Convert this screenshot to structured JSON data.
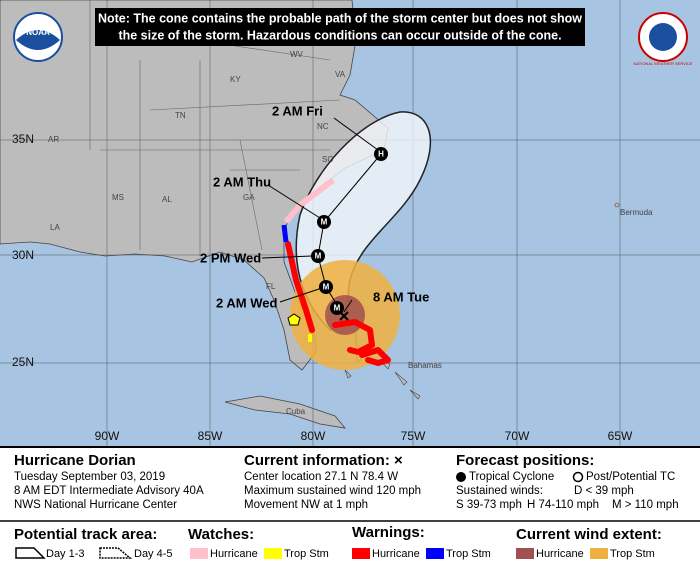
{
  "note": {
    "lines": [
      "Note: The cone contains the probable path of the storm center but does not show",
      "the size of the storm. Hazardous conditions can occur outside of the cone."
    ]
  },
  "logos": {
    "left": "NOAA",
    "right": "NATIONAL WEATHER SERVICE"
  },
  "map": {
    "places": [
      "WV",
      "VA",
      "KY",
      "TN",
      "NC",
      "AR",
      "SC",
      "MS",
      "AL",
      "GA",
      "LA",
      "FL",
      "Bermuda",
      "Bahamas",
      "Cuba"
    ],
    "latitudes": [
      "35N",
      "30N",
      "25N"
    ],
    "longitudes": [
      "90W",
      "85W",
      "80W",
      "75W",
      "70W",
      "65W"
    ],
    "forecast_points": [
      {
        "label": "8 AM Tue",
        "marker": "M"
      },
      {
        "label": "2 AM Wed",
        "marker": "M"
      },
      {
        "label": "2 PM Wed",
        "marker": "M"
      },
      {
        "label": "2 AM Thu",
        "marker": "M"
      },
      {
        "label": "2 AM Fri",
        "marker": "H"
      }
    ]
  },
  "info": {
    "storm": {
      "title": "Hurricane Dorian",
      "lines": [
        "Tuesday September 03, 2019",
        "8 AM EDT Intermediate Advisory 40A",
        "NWS National Hurricane Center"
      ]
    },
    "current": {
      "title": "Current information: ×",
      "lines": [
        "Center location 27.1 N 78.4 W",
        "Maximum sustained wind 120 mph",
        "Movement NW at 1 mph"
      ]
    },
    "forecast": {
      "title": "Forecast positions:",
      "tropical": "Tropical Cyclone",
      "post": "Post/Potential TC",
      "winds_label": "Sustained winds:",
      "d": "D < 39 mph",
      "s": "S 39-73 mph",
      "h": "H 74-110 mph",
      "m": "M > 110 mph"
    }
  },
  "legend": {
    "track": {
      "title": "Potential track area:",
      "day13": "Day 1-3",
      "day45": "Day 4-5"
    },
    "watches": {
      "title": "Watches:",
      "hurricane": "Hurricane",
      "tropical": "Trop Stm"
    },
    "warnings": {
      "title": "Warnings:",
      "hurricane": "Hurricane",
      "tropical": "Trop Stm"
    },
    "wind": {
      "title": "Current wind extent:",
      "hurricane": "Hurricane",
      "tropical": "Trop Stm"
    }
  }
}
